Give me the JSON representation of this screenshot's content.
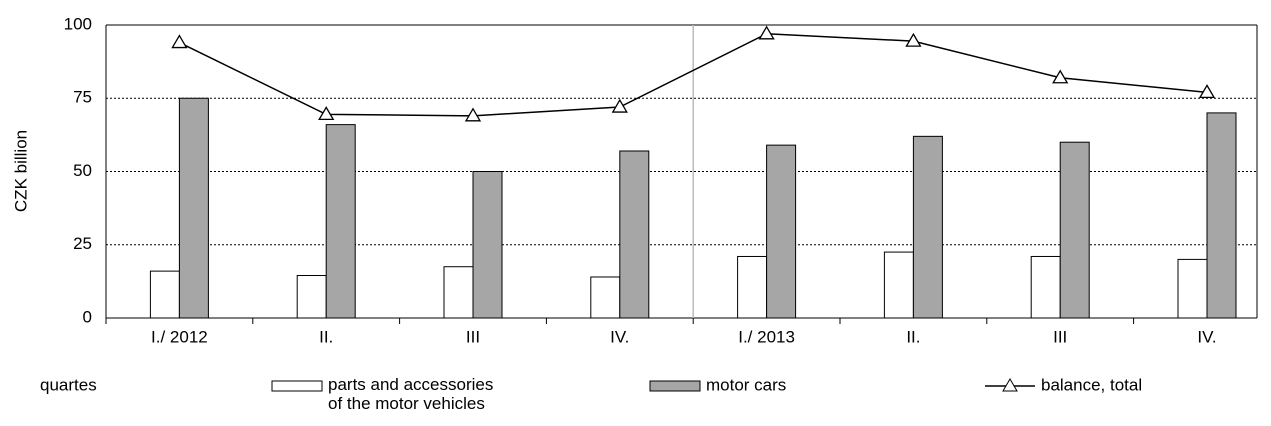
{
  "chart_data": {
    "type": "bar",
    "y_label": "CZK billion",
    "x_label": "quartes",
    "categories": [
      "I./ 2012",
      "II.",
      "III",
      "IV.",
      "I./ 2013",
      "II.",
      "III",
      "IV."
    ],
    "series": [
      {
        "name": "parts and accessories\nof the motor vehicles",
        "color": "#ffffff",
        "type": "bar",
        "values": [
          16,
          14.5,
          17.5,
          14,
          21,
          22.5,
          21,
          20
        ]
      },
      {
        "name": "motor cars",
        "color": "#a6a6a6",
        "type": "bar",
        "values": [
          75,
          66,
          50,
          57,
          59,
          62,
          60,
          70
        ]
      },
      {
        "name": "balance, total",
        "color": "#000000",
        "type": "line",
        "values": [
          94,
          69.5,
          69,
          72,
          97,
          94.5,
          82,
          77
        ]
      }
    ],
    "ylim": [
      0,
      100
    ],
    "yticks": [
      0,
      25,
      50,
      75,
      100
    ],
    "grid": true
  }
}
